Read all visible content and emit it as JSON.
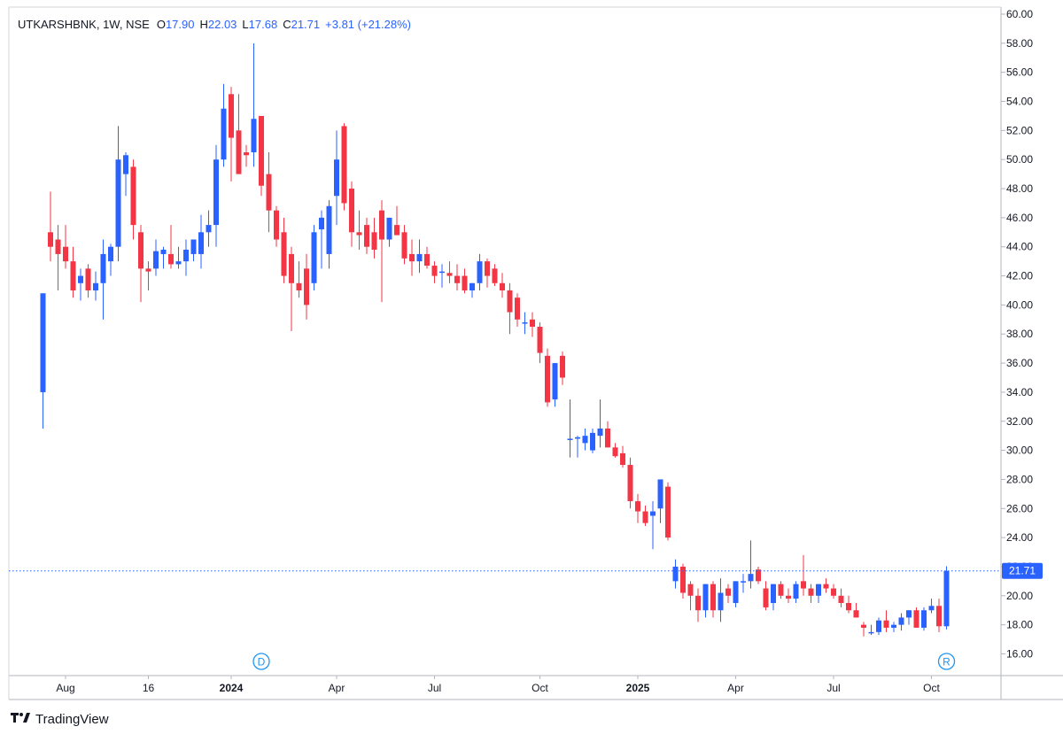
{
  "legend": {
    "symbol": "UTKARSHBNK, 1W, NSE",
    "open_label": "O",
    "open": "17.90",
    "high_label": "H",
    "high": "22.03",
    "low_label": "L",
    "low": "17.68",
    "close_label": "C",
    "close": "21.71",
    "change": "+3.81 (+21.28%)"
  },
  "brand": {
    "name": "TradingView",
    "logo": "tradingview-logo-icon"
  },
  "colors": {
    "up": "#2962ff",
    "down": "#f23645",
    "grid": "#e0e3eb",
    "text": "#131722",
    "price_line": "#2962ff"
  },
  "price_label": "21.71",
  "markers": [
    {
      "letter": "D",
      "x_label_index": 29
    },
    {
      "letter": "R",
      "x_label_index": 120
    }
  ],
  "chart_data": {
    "type": "candlestick",
    "timeframe": "1W",
    "ylim": [
      15,
      60.5
    ],
    "y_ticks": [
      "60.00",
      "58.00",
      "56.00",
      "54.00",
      "52.00",
      "50.00",
      "48.00",
      "46.00",
      "44.00",
      "42.00",
      "40.00",
      "38.00",
      "36.00",
      "34.00",
      "32.00",
      "30.00",
      "28.00",
      "26.00",
      "24.00",
      "22.00",
      "20.00",
      "18.00",
      "16.00"
    ],
    "x_ticks": [
      {
        "label": "Aug",
        "index": 3,
        "bold": false
      },
      {
        "label": "16",
        "index": 14,
        "bold": false
      },
      {
        "label": "2024",
        "index": 25,
        "bold": true
      },
      {
        "label": "Apr",
        "index": 39,
        "bold": false
      },
      {
        "label": "Jul",
        "index": 52,
        "bold": false
      },
      {
        "label": "Oct",
        "index": 66,
        "bold": false
      },
      {
        "label": "2025",
        "index": 79,
        "bold": true
      },
      {
        "label": "Apr",
        "index": 92,
        "bold": false
      },
      {
        "label": "Jul",
        "index": 105,
        "bold": false
      },
      {
        "label": "Oct",
        "index": 118,
        "bold": false
      }
    ],
    "ohlc": [
      [
        34.0,
        40.8,
        31.5,
        40.8
      ],
      [
        45.0,
        47.8,
        43.0,
        44.0
      ],
      [
        44.5,
        45.5,
        41.0,
        43.5
      ],
      [
        44.0,
        45.5,
        42.5,
        43.0
      ],
      [
        43.0,
        44.0,
        40.5,
        41.0
      ],
      [
        41.5,
        42.5,
        40.3,
        42.0
      ],
      [
        42.5,
        42.8,
        40.5,
        41.0
      ],
      [
        41.0,
        42.3,
        40.3,
        41.5
      ],
      [
        41.5,
        44.5,
        39.0,
        43.5
      ],
      [
        43.0,
        44.2,
        42.0,
        44.0
      ],
      [
        44.0,
        52.3,
        43.0,
        50.0
      ],
      [
        49.0,
        50.5,
        47.5,
        50.3
      ],
      [
        49.5,
        50.0,
        44.5,
        45.5
      ],
      [
        45.0,
        45.5,
        40.2,
        42.5
      ],
      [
        42.5,
        43.0,
        41.0,
        42.3
      ],
      [
        42.5,
        44.5,
        42.0,
        43.7
      ],
      [
        43.5,
        44.0,
        42.5,
        43.8
      ],
      [
        43.5,
        45.5,
        42.5,
        42.8
      ],
      [
        42.8,
        44.0,
        42.5,
        43.0
      ],
      [
        43.0,
        44.5,
        42.0,
        43.8
      ],
      [
        43.5,
        44.5,
        43.0,
        44.5
      ],
      [
        43.5,
        46.2,
        42.5,
        45.0
      ],
      [
        45.0,
        46.5,
        44.0,
        45.5
      ],
      [
        45.5,
        51.0,
        44.0,
        50.0
      ],
      [
        50.0,
        55.2,
        49.5,
        53.5
      ],
      [
        54.5,
        55.0,
        48.5,
        51.5
      ],
      [
        52.0,
        54.5,
        49.0,
        49.0
      ],
      [
        50.5,
        51.0,
        49.5,
        50.3
      ],
      [
        50.5,
        58.0,
        49.5,
        52.8
      ],
      [
        53.0,
        53.0,
        47.5,
        48.2
      ],
      [
        49.0,
        50.5,
        45.0,
        46.5
      ],
      [
        46.5,
        46.8,
        44.0,
        44.5
      ],
      [
        45.0,
        46.0,
        41.5,
        42.0
      ],
      [
        43.5,
        44.0,
        38.2,
        41.5
      ],
      [
        41.5,
        43.0,
        40.5,
        41.0
      ],
      [
        42.5,
        43.5,
        39.0,
        40.0
      ],
      [
        41.5,
        45.5,
        41.0,
        45.0
      ],
      [
        45.2,
        46.5,
        42.5,
        46.0
      ],
      [
        43.5,
        47.2,
        42.5,
        46.8
      ],
      [
        47.5,
        52.0,
        45.5,
        50.0
      ],
      [
        52.3,
        52.5,
        46.5,
        47.0
      ],
      [
        48.0,
        48.5,
        44.0,
        45.0
      ],
      [
        45.0,
        46.5,
        43.8,
        44.8
      ],
      [
        45.5,
        46.0,
        43.5,
        44.0
      ],
      [
        45.0,
        46.0,
        43.2,
        43.8
      ],
      [
        46.5,
        47.2,
        40.2,
        44.5
      ],
      [
        44.5,
        46.0,
        44.0,
        46.0
      ],
      [
        45.5,
        46.8,
        44.8,
        44.8
      ],
      [
        45.0,
        45.5,
        42.8,
        43.2
      ],
      [
        43.5,
        44.5,
        42.0,
        43.0
      ],
      [
        43.0,
        44.5,
        42.2,
        43.5
      ],
      [
        43.5,
        44.0,
        42.5,
        42.7
      ],
      [
        42.7,
        43.0,
        41.5,
        42.0
      ],
      [
        42.3,
        42.8,
        41.2,
        42.3
      ],
      [
        42.2,
        43.0,
        41.5,
        42.0
      ],
      [
        42.0,
        42.8,
        41.0,
        41.5
      ],
      [
        42.0,
        42.5,
        40.8,
        41.0
      ],
      [
        41.0,
        41.5,
        40.5,
        41.5
      ],
      [
        41.5,
        43.5,
        41.0,
        43.0
      ],
      [
        43.0,
        43.2,
        41.2,
        42.0
      ],
      [
        42.5,
        42.8,
        41.3,
        41.5
      ],
      [
        41.5,
        42.2,
        40.5,
        41.0
      ],
      [
        41.0,
        41.5,
        38.0,
        39.5
      ],
      [
        40.5,
        40.8,
        38.5,
        39.0
      ],
      [
        38.8,
        39.5,
        38.0,
        38.8
      ],
      [
        39.0,
        39.5,
        37.8,
        38.5
      ],
      [
        38.5,
        38.8,
        36.0,
        36.7
      ],
      [
        36.5,
        37.0,
        33.0,
        33.3
      ],
      [
        33.5,
        36.0,
        33.0,
        36.0
      ],
      [
        36.5,
        36.8,
        34.5,
        35.0
      ],
      [
        30.8,
        33.5,
        29.5,
        30.8
      ],
      [
        30.8,
        31.0,
        29.5,
        30.9
      ],
      [
        30.5,
        31.5,
        30.0,
        31.0
      ],
      [
        30.0,
        31.5,
        29.8,
        31.2
      ],
      [
        31.0,
        33.5,
        30.2,
        31.5
      ],
      [
        31.5,
        32.0,
        30.2,
        30.2
      ],
      [
        30.2,
        30.5,
        29.5,
        29.6
      ],
      [
        29.8,
        30.3,
        28.8,
        29.0
      ],
      [
        29.0,
        29.5,
        26.0,
        26.5
      ],
      [
        26.5,
        27.0,
        25.0,
        25.8
      ],
      [
        25.8,
        26.2,
        24.8,
        25.0
      ],
      [
        25.5,
        26.5,
        23.2,
        25.8
      ],
      [
        26.0,
        28.0,
        25.0,
        28.0
      ],
      [
        27.5,
        27.8,
        23.8,
        24.0
      ],
      [
        21.0,
        22.5,
        20.5,
        22.0
      ],
      [
        22.0,
        22.2,
        19.8,
        20.2
      ],
      [
        20.8,
        21.0,
        19.0,
        20.0
      ],
      [
        20.0,
        20.5,
        18.2,
        19.0
      ],
      [
        19.0,
        20.8,
        18.5,
        20.8
      ],
      [
        20.8,
        21.0,
        18.5,
        19.0
      ],
      [
        19.0,
        21.2,
        18.2,
        20.2
      ],
      [
        20.5,
        20.8,
        19.5,
        20.0
      ],
      [
        19.5,
        21.0,
        19.2,
        21.0
      ],
      [
        21.0,
        21.5,
        20.2,
        21.0
      ],
      [
        21.0,
        23.8,
        20.5,
        21.5
      ],
      [
        21.8,
        22.0,
        20.8,
        21.0
      ],
      [
        20.5,
        21.0,
        19.0,
        19.2
      ],
      [
        19.5,
        20.8,
        19.0,
        20.8
      ],
      [
        20.8,
        21.0,
        19.8,
        20.0
      ],
      [
        20.0,
        20.5,
        19.5,
        19.8
      ],
      [
        19.8,
        21.0,
        19.5,
        20.8
      ],
      [
        21.0,
        22.8,
        20.0,
        20.5
      ],
      [
        20.5,
        20.8,
        19.5,
        20.0
      ],
      [
        20.0,
        20.8,
        19.5,
        20.8
      ],
      [
        20.8,
        21.2,
        20.2,
        20.5
      ],
      [
        20.5,
        20.8,
        19.8,
        20.0
      ],
      [
        20.0,
        20.5,
        19.2,
        19.5
      ],
      [
        19.5,
        20.0,
        18.8,
        19.0
      ],
      [
        19.0,
        19.5,
        18.5,
        18.5
      ],
      [
        18.0,
        18.2,
        17.2,
        17.8
      ],
      [
        17.5,
        18.0,
        17.3,
        17.5
      ],
      [
        17.5,
        18.5,
        17.3,
        18.3
      ],
      [
        18.3,
        19.0,
        17.5,
        17.8
      ],
      [
        17.8,
        18.2,
        17.5,
        18.0
      ],
      [
        18.0,
        18.8,
        17.6,
        18.5
      ],
      [
        18.5,
        19.0,
        18.0,
        19.0
      ],
      [
        19.0,
        19.2,
        17.8,
        17.8
      ],
      [
        17.8,
        19.2,
        17.6,
        19.0
      ],
      [
        19.0,
        19.8,
        18.8,
        19.3
      ],
      [
        19.3,
        19.8,
        17.5,
        17.9
      ],
      [
        17.9,
        22.03,
        17.68,
        21.71
      ]
    ]
  }
}
